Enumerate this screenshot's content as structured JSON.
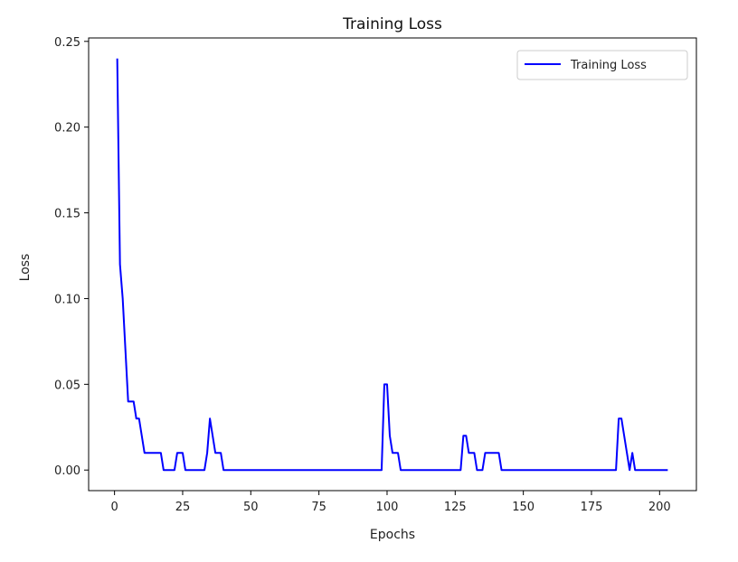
{
  "chart_data": {
    "type": "line",
    "title": "Training Loss",
    "xlabel": "Epochs",
    "ylabel": "Loss",
    "xlim": [
      -9.5,
      213.5
    ],
    "ylim": [
      -0.012,
      0.252
    ],
    "xticks": [
      0,
      25,
      50,
      75,
      100,
      125,
      150,
      175,
      200
    ],
    "yticks": [
      0.0,
      0.05,
      0.1,
      0.15,
      0.2,
      0.25
    ],
    "xtick_labels": [
      "0",
      "25",
      "50",
      "75",
      "100",
      "125",
      "150",
      "175",
      "200"
    ],
    "ytick_labels": [
      "0.00",
      "0.05",
      "0.10",
      "0.15",
      "0.20",
      "0.25"
    ],
    "grid": false,
    "legend_position": "top-right",
    "series": [
      {
        "name": "Training Loss",
        "color": "#0000ff",
        "x": [
          1,
          2,
          3,
          4,
          5,
          6,
          7,
          8,
          9,
          10,
          11,
          12,
          13,
          14,
          15,
          16,
          17,
          18,
          19,
          20,
          21,
          22,
          23,
          24,
          25,
          26,
          27,
          28,
          29,
          30,
          31,
          32,
          33,
          34,
          35,
          36,
          37,
          38,
          39,
          40,
          41,
          98,
          99,
          100,
          101,
          102,
          103,
          104,
          105,
          106,
          127,
          128,
          129,
          130,
          131,
          132,
          133,
          134,
          135,
          136,
          137,
          138,
          139,
          140,
          141,
          142,
          143,
          184,
          185,
          186,
          187,
          188,
          189,
          190,
          191,
          203
        ],
        "y": [
          0.24,
          0.12,
          0.1,
          0.07,
          0.04,
          0.04,
          0.04,
          0.03,
          0.03,
          0.02,
          0.01,
          0.01,
          0.01,
          0.01,
          0.01,
          0.01,
          0.01,
          0.0,
          0.0,
          0.0,
          0.0,
          0.0,
          0.01,
          0.01,
          0.01,
          0.0,
          0.0,
          0.0,
          0.0,
          0.0,
          0.0,
          0.0,
          0.0,
          0.01,
          0.03,
          0.02,
          0.01,
          0.01,
          0.01,
          0.0,
          0.0,
          0.0,
          0.05,
          0.05,
          0.02,
          0.01,
          0.01,
          0.01,
          0.0,
          0.0,
          0.0,
          0.02,
          0.02,
          0.01,
          0.01,
          0.01,
          0.0,
          0.0,
          0.0,
          0.01,
          0.01,
          0.01,
          0.01,
          0.01,
          0.01,
          0.0,
          0.0,
          0.0,
          0.03,
          0.03,
          0.02,
          0.01,
          0.0,
          0.01,
          0.0,
          0.0
        ]
      }
    ]
  }
}
